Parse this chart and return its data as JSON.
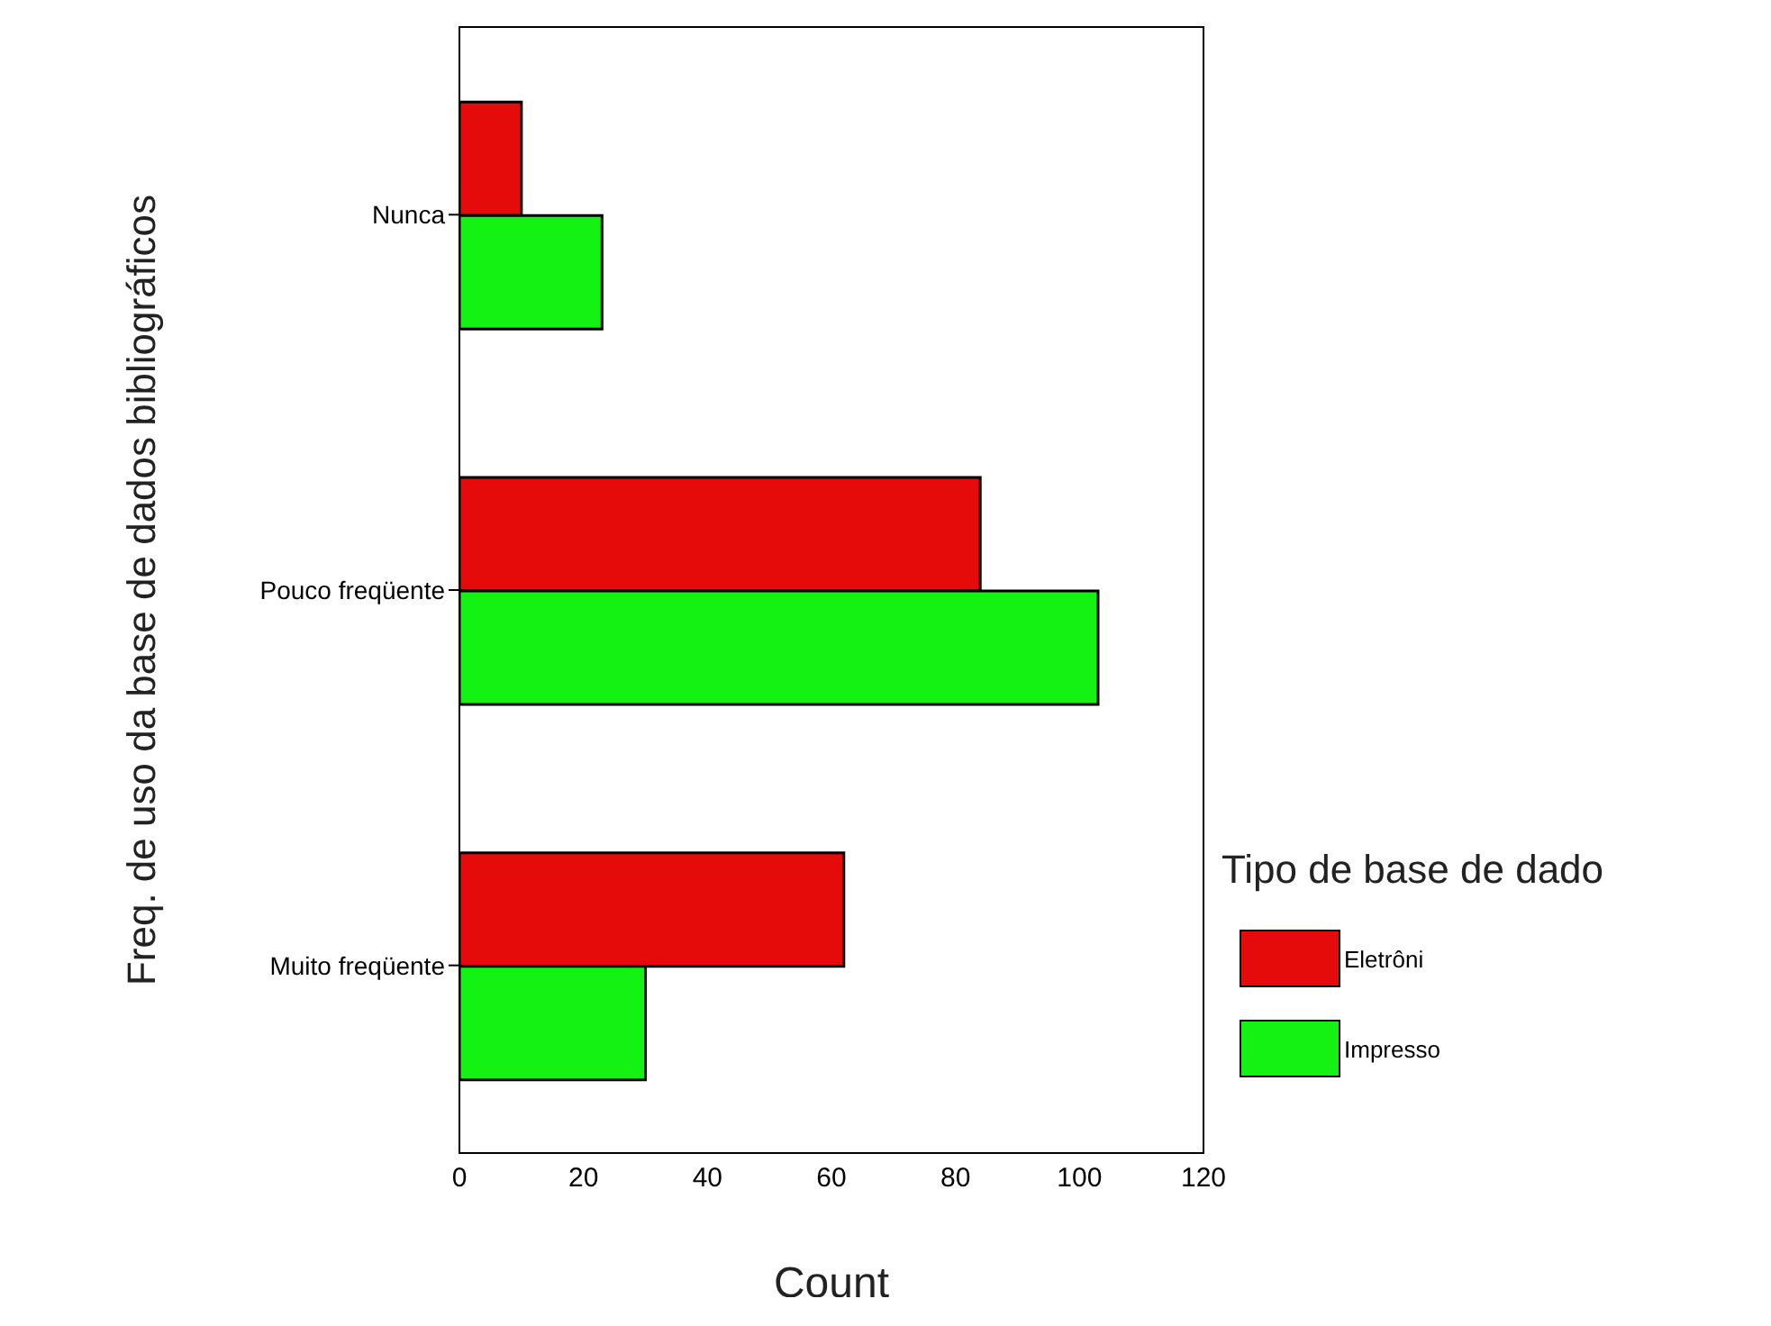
{
  "chart_data": {
    "type": "bar",
    "orientation": "horizontal",
    "xlabel": "Count",
    "ylabel": "Freq. de uso da base de dados bibliográficos",
    "legend_title": "Tipo de base de dado",
    "categories": [
      "Nunca",
      "Pouco freqüente",
      "Muito freqüente"
    ],
    "series": [
      {
        "name": "Eletrôni",
        "color": "#e50b0b",
        "values": [
          10,
          84,
          62
        ]
      },
      {
        "name": "Impresso",
        "color": "#13f213",
        "values": [
          23,
          103,
          30
        ]
      }
    ],
    "xlim": [
      0,
      120
    ],
    "xticks": [
      0,
      20,
      40,
      60,
      80,
      100,
      120
    ],
    "grid": false,
    "legend": "right"
  }
}
